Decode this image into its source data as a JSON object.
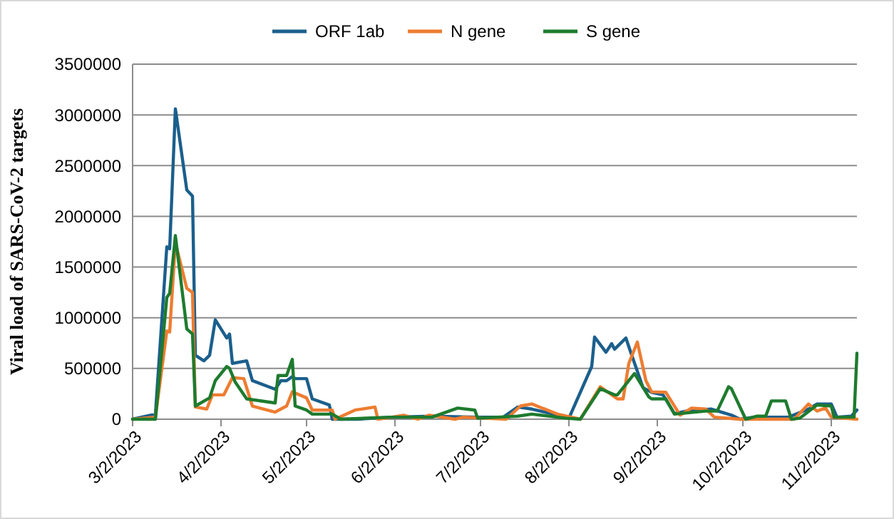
{
  "chart_data": {
    "type": "line",
    "ylabel": "Viral load of SARS-CoV-2 targets",
    "legend": "top",
    "grid": "y",
    "marker": "none",
    "line_style": "solid",
    "xlim": [
      "2023-03-02",
      "2023-11-11"
    ],
    "xticks": [
      {
        "value": "2023-03-02",
        "label": "3/2/2023"
      },
      {
        "value": "2023-04-02",
        "label": "4/2/2023"
      },
      {
        "value": "2023-05-02",
        "label": "5/2/2023"
      },
      {
        "value": "2023-06-02",
        "label": "6/2/2023"
      },
      {
        "value": "2023-07-02",
        "label": "7/2/2023"
      },
      {
        "value": "2023-08-02",
        "label": "8/2/2023"
      },
      {
        "value": "2023-09-02",
        "label": "9/2/2023"
      },
      {
        "value": "2023-10-02",
        "label": "10/2/2023"
      },
      {
        "value": "2023-11-02",
        "label": "11/2/2023"
      }
    ],
    "ylim": [
      0,
      3500000
    ],
    "yticks": [
      0,
      500000,
      1000000,
      1500000,
      2000000,
      2500000,
      3000000,
      3500000
    ],
    "series": [
      {
        "name": "ORF 1ab",
        "color": "#1b5f8c",
        "x": [
          "2023-03-02",
          "2023-03-10",
          "2023-03-14",
          "2023-03-15",
          "2023-03-17",
          "2023-03-21",
          "2023-03-23",
          "2023-03-24",
          "2023-03-27",
          "2023-03-29",
          "2023-03-31",
          "2023-04-04",
          "2023-04-05",
          "2023-04-06",
          "2023-04-11",
          "2023-04-13",
          "2023-04-21",
          "2023-04-23",
          "2023-04-25",
          "2023-04-27",
          "2023-04-28",
          "2023-05-02",
          "2023-05-04",
          "2023-05-10",
          "2023-05-11",
          "2023-05-20",
          "2023-06-01",
          "2023-06-15",
          "2023-07-01",
          "2023-07-10",
          "2023-07-15",
          "2023-07-20",
          "2023-07-29",
          "2023-08-02",
          "2023-08-10",
          "2023-08-11",
          "2023-08-15",
          "2023-08-17",
          "2023-08-18",
          "2023-08-22",
          "2023-08-23",
          "2023-08-28",
          "2023-08-31",
          "2023-09-04",
          "2023-09-08",
          "2023-09-13",
          "2023-09-21",
          "2023-09-28",
          "2023-10-01",
          "2023-10-06",
          "2023-10-18",
          "2023-10-25",
          "2023-10-28",
          "2023-11-02",
          "2023-11-04",
          "2023-11-09",
          "2023-11-11"
        ],
        "values": [
          0,
          50000,
          1700000,
          1680000,
          3060000,
          2260000,
          2200000,
          630000,
          575000,
          630000,
          980000,
          800000,
          840000,
          550000,
          575000,
          380000,
          295000,
          380000,
          380000,
          420000,
          400000,
          400000,
          200000,
          140000,
          0,
          0,
          20000,
          30000,
          20000,
          20000,
          120000,
          100000,
          40000,
          10000,
          520000,
          810000,
          660000,
          745000,
          690000,
          800000,
          715000,
          310000,
          265000,
          240000,
          55000,
          85000,
          100000,
          40000,
          0,
          20000,
          20000,
          100000,
          150000,
          150000,
          20000,
          30000,
          90000
        ]
      },
      {
        "name": "N gene",
        "color": "#ed7d31",
        "x": [
          "2023-03-02",
          "2023-03-10",
          "2023-03-14",
          "2023-03-15",
          "2023-03-17",
          "2023-03-21",
          "2023-03-23",
          "2023-03-24",
          "2023-03-28",
          "2023-03-30",
          "2023-04-03",
          "2023-04-06",
          "2023-04-10",
          "2023-04-13",
          "2023-04-21",
          "2023-04-25",
          "2023-04-27",
          "2023-05-02",
          "2023-05-04",
          "2023-05-11",
          "2023-05-12",
          "2023-05-19",
          "2023-05-26",
          "2023-05-27",
          "2023-06-01",
          "2023-06-05",
          "2023-06-10",
          "2023-06-14",
          "2023-06-23",
          "2023-06-26",
          "2023-07-11",
          "2023-07-16",
          "2023-07-20",
          "2023-07-29",
          "2023-08-06",
          "2023-08-13",
          "2023-08-19",
          "2023-08-21",
          "2023-08-23",
          "2023-08-26",
          "2023-08-29",
          "2023-08-31",
          "2023-09-05",
          "2023-09-10",
          "2023-09-14",
          "2023-09-19",
          "2023-09-22",
          "2023-10-01",
          "2023-10-20",
          "2023-10-25",
          "2023-10-28",
          "2023-10-31",
          "2023-11-02",
          "2023-11-11"
        ],
        "values": [
          0,
          20000,
          870000,
          860000,
          1740000,
          1290000,
          1250000,
          120000,
          100000,
          240000,
          240000,
          410000,
          400000,
          130000,
          70000,
          130000,
          270000,
          210000,
          90000,
          90000,
          0,
          90000,
          120000,
          0,
          20000,
          40000,
          0,
          40000,
          0,
          20000,
          0,
          130000,
          150000,
          50000,
          0,
          320000,
          200000,
          200000,
          550000,
          760000,
          380000,
          270000,
          265000,
          40000,
          110000,
          100000,
          20000,
          0,
          0,
          150000,
          80000,
          110000,
          20000,
          0
        ]
      },
      {
        "name": "S gene",
        "color": "#1e7b2e",
        "x": [
          "2023-03-02",
          "2023-03-10",
          "2023-03-14",
          "2023-03-15",
          "2023-03-17",
          "2023-03-21",
          "2023-03-23",
          "2023-03-24",
          "2023-03-29",
          "2023-03-31",
          "2023-04-04",
          "2023-04-05",
          "2023-04-07",
          "2023-04-11",
          "2023-04-21",
          "2023-04-22",
          "2023-04-25",
          "2023-04-27",
          "2023-04-28",
          "2023-05-02",
          "2023-05-04",
          "2023-05-11",
          "2023-05-14",
          "2023-06-01",
          "2023-06-15",
          "2023-06-24",
          "2023-06-30",
          "2023-07-01",
          "2023-07-15",
          "2023-07-20",
          "2023-08-01",
          "2023-08-06",
          "2023-08-13",
          "2023-08-18",
          "2023-08-19",
          "2023-08-25",
          "2023-08-30",
          "2023-08-31",
          "2023-09-05",
          "2023-09-08",
          "2023-09-19",
          "2023-09-23",
          "2023-09-27",
          "2023-09-28",
          "2023-10-03",
          "2023-10-07",
          "2023-10-10",
          "2023-10-12",
          "2023-10-17",
          "2023-10-19",
          "2023-10-22",
          "2023-10-28",
          "2023-11-02",
          "2023-11-03",
          "2023-11-10",
          "2023-11-11"
        ],
        "values": [
          0,
          0,
          1200000,
          1240000,
          1810000,
          890000,
          840000,
          130000,
          210000,
          380000,
          520000,
          500000,
          365000,
          200000,
          160000,
          430000,
          430000,
          590000,
          130000,
          90000,
          50000,
          50000,
          0,
          20000,
          20000,
          110000,
          90000,
          10000,
          30000,
          50000,
          10000,
          0,
          300000,
          240000,
          240000,
          450000,
          220000,
          200000,
          200000,
          50000,
          80000,
          80000,
          320000,
          300000,
          0,
          30000,
          30000,
          180000,
          180000,
          0,
          10000,
          140000,
          130000,
          20000,
          20000,
          650000
        ]
      }
    ]
  }
}
